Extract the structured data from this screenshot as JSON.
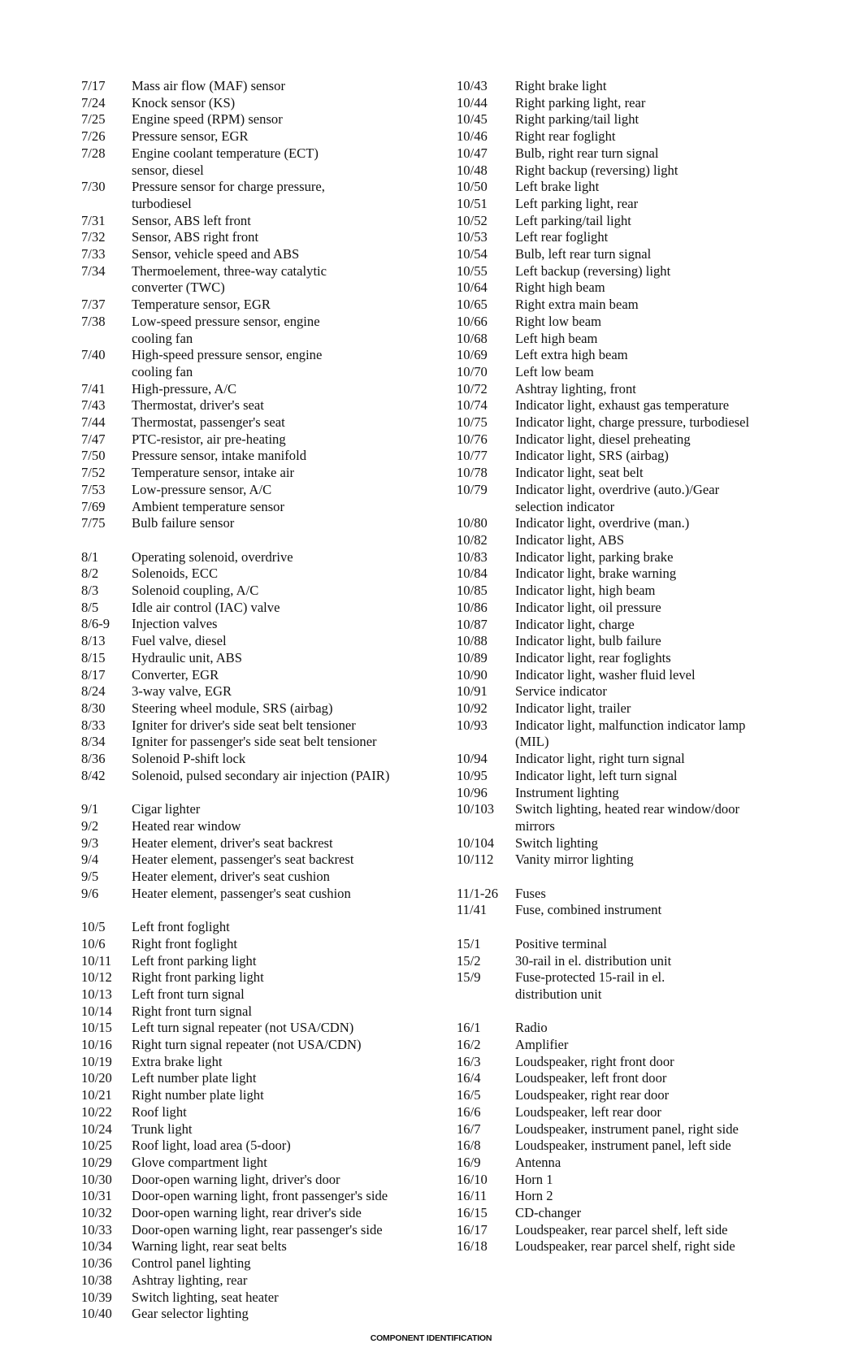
{
  "columns": [
    [
      [
        {
          "code": "7/17",
          "lines": [
            "Mass air flow (MAF) sensor"
          ]
        },
        {
          "code": "7/24",
          "lines": [
            "Knock sensor (KS)"
          ]
        },
        {
          "code": "7/25",
          "lines": [
            "Engine speed (RPM) sensor"
          ]
        },
        {
          "code": "7/26",
          "lines": [
            "Pressure sensor, EGR"
          ]
        },
        {
          "code": "7/28",
          "lines": [
            "Engine coolant temperature (ECT)",
            "sensor, diesel"
          ]
        },
        {
          "code": "7/30",
          "lines": [
            "Pressure sensor for charge pressure,",
            "turbodiesel"
          ]
        },
        {
          "code": "7/31",
          "lines": [
            "Sensor, ABS left front"
          ]
        },
        {
          "code": "7/32",
          "lines": [
            "Sensor, ABS right front"
          ]
        },
        {
          "code": "7/33",
          "lines": [
            "Sensor, vehicle speed and ABS"
          ]
        },
        {
          "code": "7/34",
          "lines": [
            "Thermoelement, three-way catalytic",
            "converter (TWC)"
          ]
        },
        {
          "code": "7/37",
          "lines": [
            "Temperature sensor, EGR"
          ]
        },
        {
          "code": "7/38",
          "lines": [
            "Low-speed pressure sensor, engine",
            "cooling fan"
          ]
        },
        {
          "code": "7/40",
          "lines": [
            "High-speed pressure sensor, engine",
            "cooling fan"
          ]
        },
        {
          "code": "7/41",
          "lines": [
            "High-pressure, A/C"
          ]
        },
        {
          "code": "7/43",
          "lines": [
            "Thermostat, driver's seat"
          ]
        },
        {
          "code": "7/44",
          "lines": [
            "Thermostat, passenger's seat"
          ]
        },
        {
          "code": "7/47",
          "lines": [
            "PTC-resistor, air pre-heating"
          ]
        },
        {
          "code": "7/50",
          "lines": [
            "Pressure sensor, intake manifold"
          ]
        },
        {
          "code": "7/52",
          "lines": [
            "Temperature sensor, intake air"
          ]
        },
        {
          "code": "7/53",
          "lines": [
            "Low-pressure sensor, A/C"
          ]
        },
        {
          "code": "7/69",
          "lines": [
            "Ambient temperature sensor"
          ]
        },
        {
          "code": "7/75",
          "lines": [
            "Bulb failure sensor"
          ]
        }
      ],
      [
        {
          "code": "8/1",
          "lines": [
            "Operating solenoid, overdrive"
          ]
        },
        {
          "code": "8/2",
          "lines": [
            "Solenoids, ECC"
          ]
        },
        {
          "code": "8/3",
          "lines": [
            "Solenoid coupling, A/C"
          ]
        },
        {
          "code": "8/5",
          "lines": [
            "Idle air control (IAC) valve"
          ]
        },
        {
          "code": "8/6-9",
          "lines": [
            "Injection valves"
          ]
        },
        {
          "code": "8/13",
          "lines": [
            "Fuel valve, diesel"
          ]
        },
        {
          "code": "8/15",
          "lines": [
            "Hydraulic unit, ABS"
          ]
        },
        {
          "code": "8/17",
          "lines": [
            "Converter, EGR"
          ]
        },
        {
          "code": "8/24",
          "lines": [
            "3-way valve, EGR"
          ]
        },
        {
          "code": "8/30",
          "lines": [
            "Steering wheel module, SRS (airbag)"
          ]
        },
        {
          "code": "8/33",
          "lines": [
            "Igniter for driver's side seat belt tensioner"
          ]
        },
        {
          "code": "8/34",
          "lines": [
            "Igniter for passenger's side seat belt tensioner"
          ]
        },
        {
          "code": "8/36",
          "lines": [
            "Solenoid P-shift lock"
          ]
        },
        {
          "code": "8/42",
          "lines": [
            "Solenoid, pulsed secondary air injection (PAIR)"
          ]
        }
      ],
      [
        {
          "code": "9/1",
          "lines": [
            "Cigar lighter"
          ]
        },
        {
          "code": "9/2",
          "lines": [
            "Heated rear window"
          ]
        },
        {
          "code": "9/3",
          "lines": [
            "Heater element, driver's seat backrest"
          ]
        },
        {
          "code": "9/4",
          "lines": [
            "Heater element, passenger's seat backrest"
          ]
        },
        {
          "code": "9/5",
          "lines": [
            "Heater element, driver's seat cushion"
          ]
        },
        {
          "code": "9/6",
          "lines": [
            "Heater element, passenger's seat cushion"
          ]
        }
      ],
      [
        {
          "code": "10/5",
          "lines": [
            "Left front foglight"
          ]
        },
        {
          "code": "10/6",
          "lines": [
            "Right front foglight"
          ]
        },
        {
          "code": "10/11",
          "lines": [
            "Left front parking light"
          ]
        },
        {
          "code": "10/12",
          "lines": [
            "Right front parking light"
          ]
        },
        {
          "code": "10/13",
          "lines": [
            "Left front turn signal"
          ]
        },
        {
          "code": "10/14",
          "lines": [
            "Right front turn signal"
          ]
        },
        {
          "code": "10/15",
          "lines": [
            "Left turn signal repeater (not USA/CDN)"
          ]
        },
        {
          "code": "10/16",
          "lines": [
            "Right turn signal repeater (not USA/CDN)"
          ]
        },
        {
          "code": "10/19",
          "lines": [
            "Extra brake light"
          ]
        },
        {
          "code": "10/20",
          "lines": [
            "Left number plate light"
          ]
        },
        {
          "code": "10/21",
          "lines": [
            "Right number plate light"
          ]
        },
        {
          "code": "10/22",
          "lines": [
            "Roof light"
          ]
        },
        {
          "code": "10/24",
          "lines": [
            "Trunk light"
          ]
        },
        {
          "code": "10/25",
          "lines": [
            "Roof light, load area (5-door)"
          ]
        },
        {
          "code": "10/29",
          "lines": [
            "Glove compartment light"
          ]
        },
        {
          "code": "10/30",
          "lines": [
            "Door-open warning light, driver's door"
          ]
        },
        {
          "code": "10/31",
          "lines": [
            "Door-open warning light, front passenger's side"
          ]
        },
        {
          "code": "10/32",
          "lines": [
            "Door-open warning light, rear driver's side"
          ]
        },
        {
          "code": "10/33",
          "lines": [
            "Door-open warning light, rear passenger's side"
          ]
        },
        {
          "code": "10/34",
          "lines": [
            "Warning light, rear seat belts"
          ]
        },
        {
          "code": "10/36",
          "lines": [
            "Control panel lighting"
          ]
        },
        {
          "code": "10/38",
          "lines": [
            "Ashtray lighting, rear"
          ]
        },
        {
          "code": "10/39",
          "lines": [
            "Switch lighting, seat heater"
          ]
        },
        {
          "code": "10/40",
          "lines": [
            "Gear selector lighting"
          ]
        }
      ]
    ],
    [
      [
        {
          "code": "10/43",
          "lines": [
            "Right brake light"
          ]
        },
        {
          "code": "10/44",
          "lines": [
            "Right parking light, rear"
          ]
        },
        {
          "code": "10/45",
          "lines": [
            "Right parking/tail light"
          ]
        },
        {
          "code": "10/46",
          "lines": [
            "Right rear foglight"
          ]
        },
        {
          "code": "10/47",
          "lines": [
            "Bulb, right rear turn signal"
          ]
        },
        {
          "code": "10/48",
          "lines": [
            "Right backup (reversing) light"
          ]
        },
        {
          "code": "10/50",
          "lines": [
            "Left brake light"
          ]
        },
        {
          "code": "10/51",
          "lines": [
            "Left parking light, rear"
          ]
        },
        {
          "code": "10/52",
          "lines": [
            "Left parking/tail light"
          ]
        },
        {
          "code": "10/53",
          "lines": [
            "Left rear foglight"
          ]
        },
        {
          "code": "10/54",
          "lines": [
            "Bulb, left rear turn signal"
          ]
        },
        {
          "code": "10/55",
          "lines": [
            "Left backup (reversing) light"
          ]
        },
        {
          "code": "10/64",
          "lines": [
            "Right high beam"
          ]
        },
        {
          "code": "10/65",
          "lines": [
            "Right extra main beam"
          ]
        },
        {
          "code": "10/66",
          "lines": [
            "Right low beam"
          ]
        },
        {
          "code": "10/68",
          "lines": [
            "Left high beam"
          ]
        },
        {
          "code": "10/69",
          "lines": [
            "Left extra high beam"
          ]
        },
        {
          "code": "10/70",
          "lines": [
            "Left low beam"
          ]
        },
        {
          "code": "10/72",
          "lines": [
            "Ashtray lighting, front"
          ]
        },
        {
          "code": "10/74",
          "lines": [
            "Indicator light, exhaust gas temperature"
          ]
        },
        {
          "code": "10/75",
          "lines": [
            "Indicator light, charge pressure, turbodiesel"
          ]
        },
        {
          "code": "10/76",
          "lines": [
            "Indicator light, diesel preheating"
          ]
        },
        {
          "code": "10/77",
          "lines": [
            "Indicator light, SRS  (airbag)"
          ]
        },
        {
          "code": "10/78",
          "lines": [
            "Indicator light, seat belt"
          ]
        },
        {
          "code": "10/79",
          "lines": [
            "Indicator light, overdrive (auto.)/Gear",
            "selection indicator"
          ]
        },
        {
          "code": "10/80",
          "lines": [
            "Indicator light, overdrive (man.)"
          ]
        },
        {
          "code": "10/82",
          "lines": [
            "Indicator light, ABS"
          ]
        },
        {
          "code": "10/83",
          "lines": [
            "Indicator light, parking brake"
          ]
        },
        {
          "code": "10/84",
          "lines": [
            "Indicator light, brake warning"
          ]
        },
        {
          "code": "10/85",
          "lines": [
            "Indicator light, high beam"
          ]
        },
        {
          "code": "10/86",
          "lines": [
            "Indicator light, oil pressure"
          ]
        },
        {
          "code": "10/87",
          "lines": [
            "Indicator light, charge"
          ]
        },
        {
          "code": "10/88",
          "lines": [
            "Indicator light, bulb failure"
          ]
        },
        {
          "code": "10/89",
          "lines": [
            "Indicator light, rear foglights"
          ]
        },
        {
          "code": "10/90",
          "lines": [
            "Indicator light, washer fluid level"
          ]
        },
        {
          "code": "10/91",
          "lines": [
            "Service indicator"
          ]
        },
        {
          "code": "10/92",
          "lines": [
            "Indicator light, trailer"
          ]
        },
        {
          "code": "10/93",
          "lines": [
            "Indicator light, malfunction indicator lamp",
            "(MIL)"
          ]
        },
        {
          "code": "10/94",
          "lines": [
            "Indicator light, right turn signal"
          ]
        },
        {
          "code": "10/95",
          "lines": [
            "Indicator light, left turn signal"
          ]
        },
        {
          "code": "10/96",
          "lines": [
            "Instrument lighting"
          ]
        },
        {
          "code": "10/103",
          "lines": [
            "Switch lighting, heated rear window/door",
            "mirrors"
          ]
        },
        {
          "code": "10/104",
          "lines": [
            "Switch lighting"
          ]
        },
        {
          "code": "10/112",
          "lines": [
            "Vanity mirror lighting"
          ]
        }
      ],
      [
        {
          "code": "11/1-26",
          "lines": [
            "Fuses"
          ]
        },
        {
          "code": "11/41",
          "lines": [
            "Fuse, combined instrument"
          ]
        }
      ],
      [
        {
          "code": "15/1",
          "lines": [
            "Positive terminal"
          ]
        },
        {
          "code": "15/2",
          "lines": [
            "30-rail in el. distribution unit"
          ]
        },
        {
          "code": "15/9",
          "lines": [
            "Fuse-protected 15-rail in el.",
            "distribution unit"
          ]
        }
      ],
      [
        {
          "code": "16/1",
          "lines": [
            "Radio"
          ]
        },
        {
          "code": "16/2",
          "lines": [
            "Amplifier"
          ]
        },
        {
          "code": "16/3",
          "lines": [
            "Loudspeaker, right front door"
          ]
        },
        {
          "code": "16/4",
          "lines": [
            "Loudspeaker, left front door"
          ]
        },
        {
          "code": "16/5",
          "lines": [
            "Loudspeaker, right rear door"
          ]
        },
        {
          "code": "16/6",
          "lines": [
            "Loudspeaker, left rear door"
          ]
        },
        {
          "code": "16/7",
          "lines": [
            "Loudspeaker, instrument panel, right side"
          ]
        },
        {
          "code": "16/8",
          "lines": [
            "Loudspeaker, instrument panel, left side"
          ]
        },
        {
          "code": "16/9",
          "lines": [
            "Antenna"
          ]
        },
        {
          "code": "16/10",
          "lines": [
            "Horn 1"
          ]
        },
        {
          "code": "16/11",
          "lines": [
            "Horn 2"
          ]
        },
        {
          "code": "16/15",
          "lines": [
            "CD-changer"
          ]
        },
        {
          "code": "16/17",
          "lines": [
            "Loudspeaker, rear parcel shelf, left side"
          ]
        },
        {
          "code": "16/18",
          "lines": [
            "Loudspeaker, rear parcel shelf, right side"
          ]
        }
      ]
    ]
  ],
  "footer": "COMPONENT IDENTIFICATION"
}
